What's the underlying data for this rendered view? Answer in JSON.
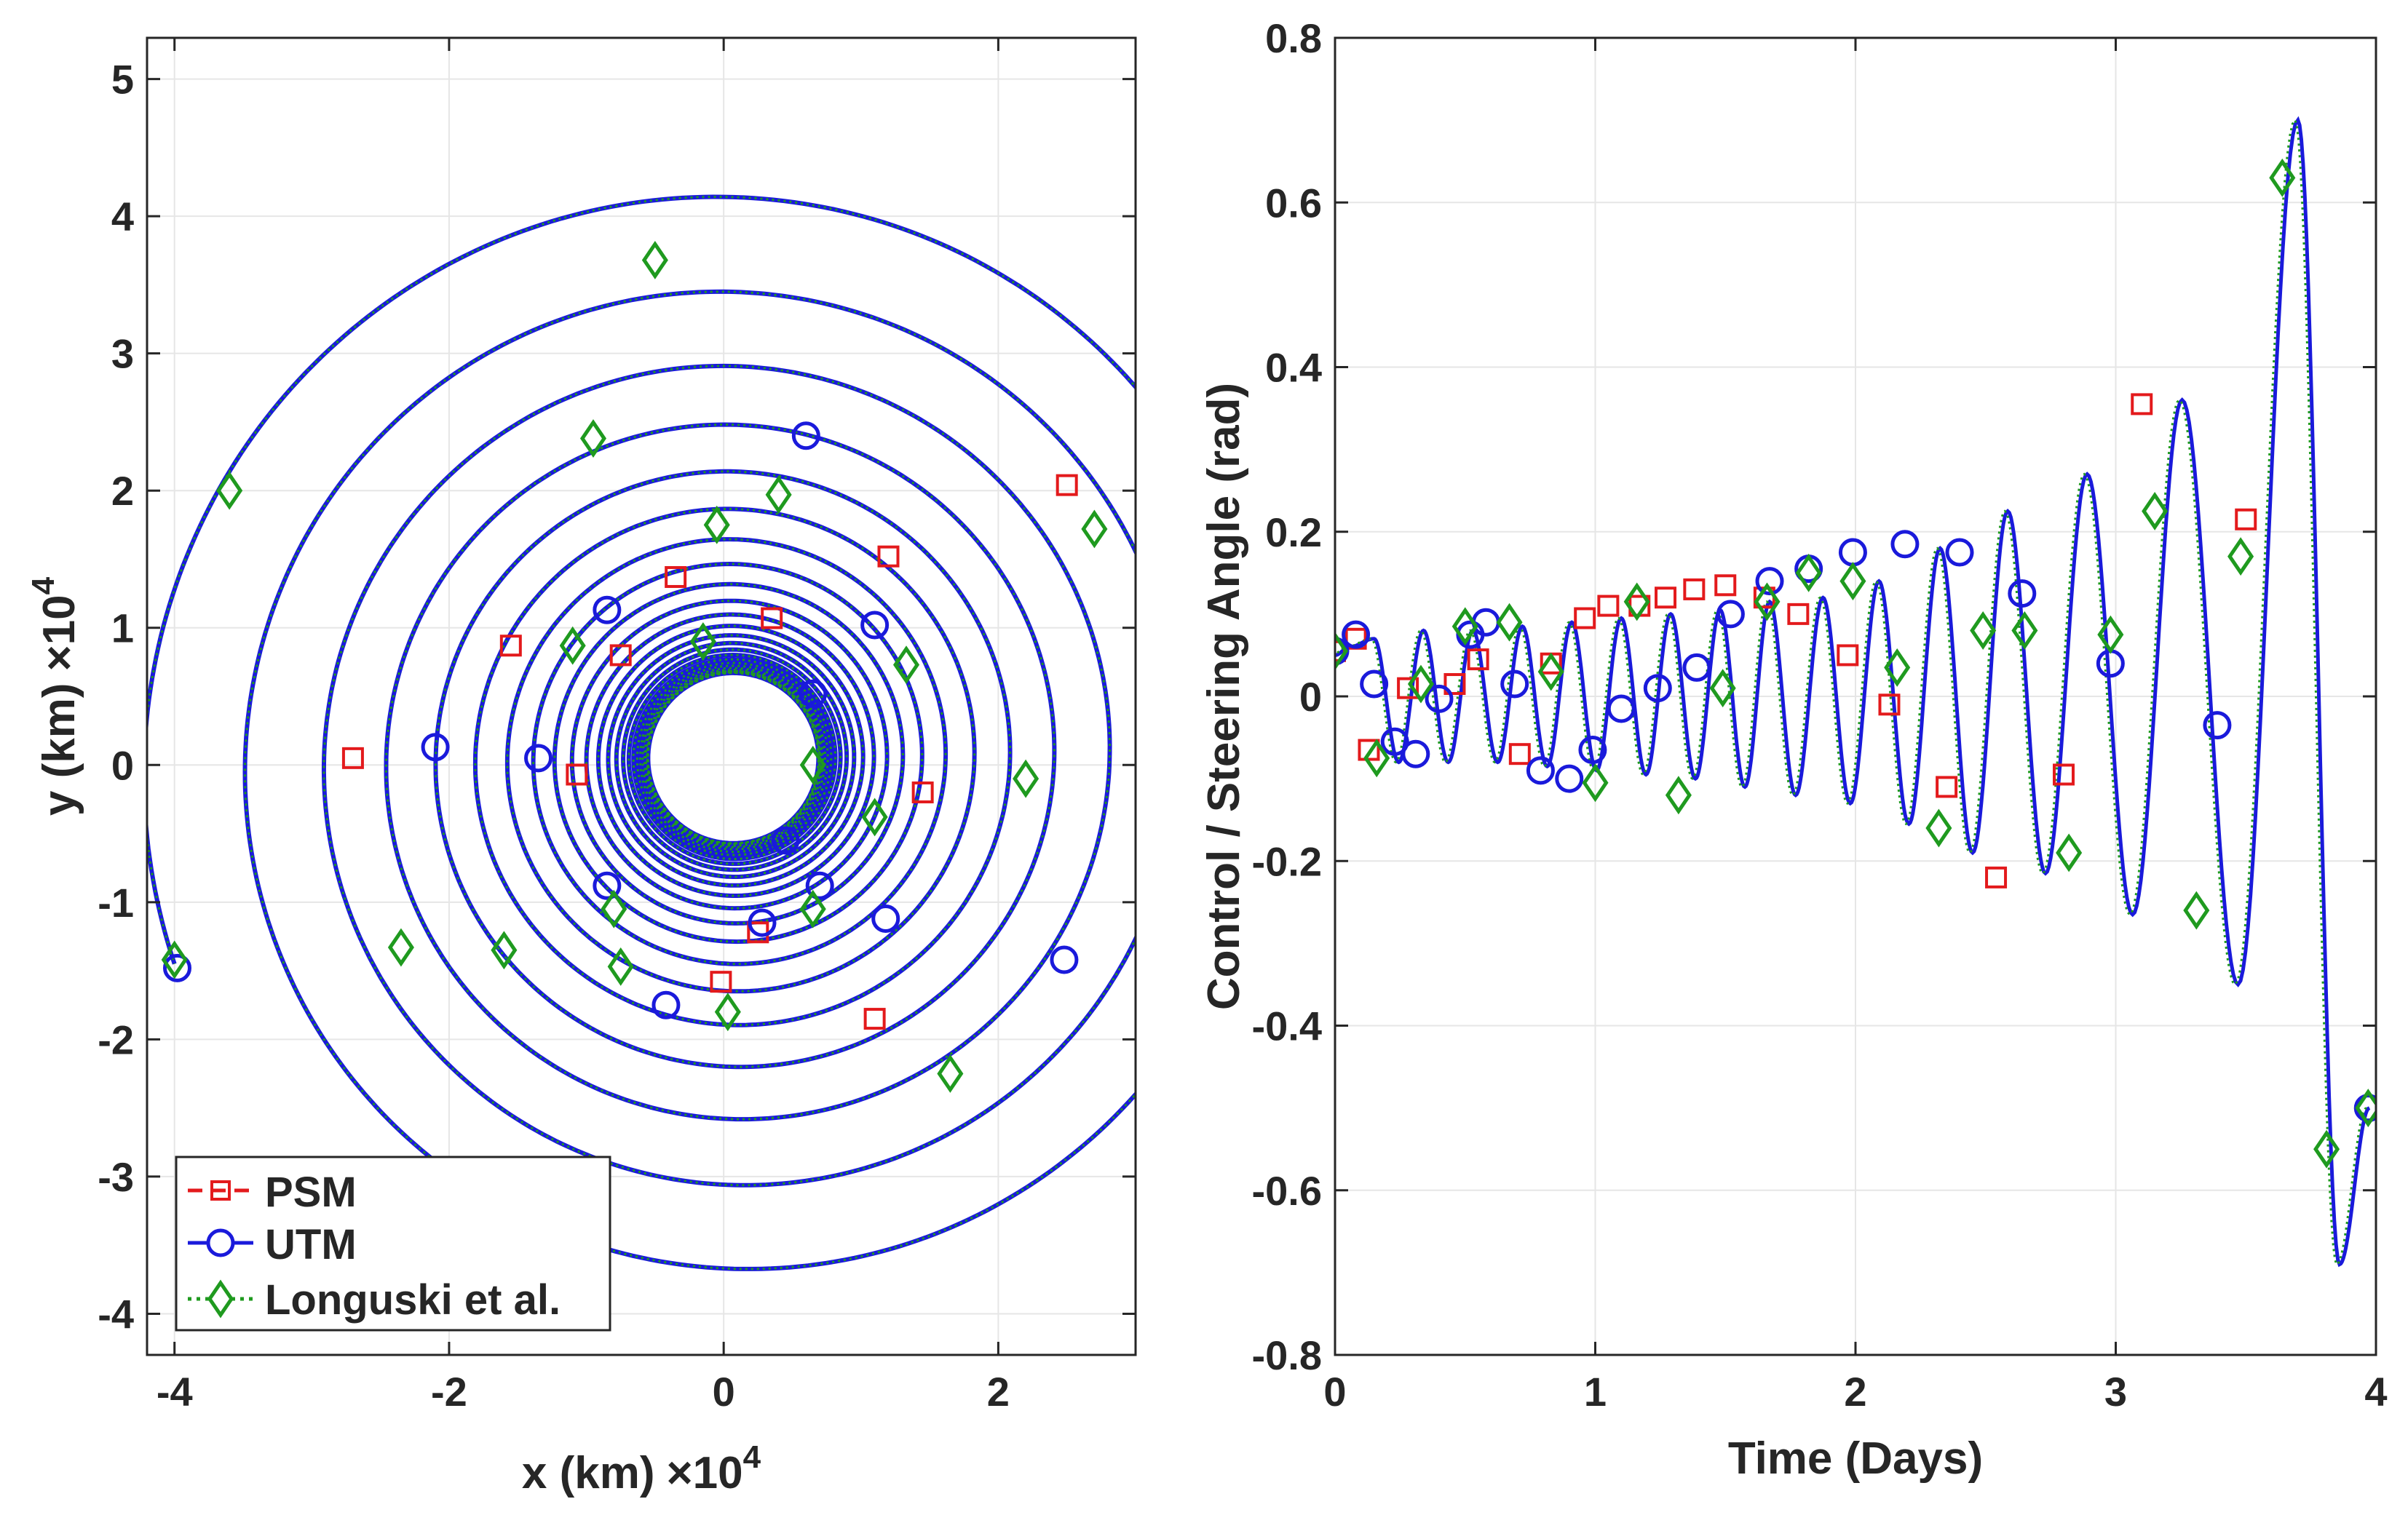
{
  "chart_data": [
    {
      "type": "line",
      "subtype": "spiral-trajectory",
      "xlabel": "x (km)",
      "ylabel": "y (km)",
      "x_exponent_label": "×10",
      "x_exponent": "4",
      "y_exponent_label": "×10",
      "y_exponent": "4",
      "xlim": [
        -4.2,
        3.0
      ],
      "ylim": [
        -4.3,
        5.3
      ],
      "xticks": [
        -4,
        -2,
        0,
        2
      ],
      "yticks": [
        -4,
        -3,
        -2,
        -1,
        0,
        1,
        2,
        3,
        4,
        5
      ],
      "xtick_labels": [
        "-4",
        "-2",
        "0",
        "2"
      ],
      "ytick_labels": [
        "-4",
        "-3",
        "-2",
        "-1",
        "0",
        "1",
        "2",
        "3",
        "4",
        "5"
      ],
      "grid": true,
      "legend_position": "bottom-left",
      "spiral": {
        "center": [
          0.07,
          0.05
        ],
        "start_radius": 0.62,
        "end_point": [
          -4.0,
          -1.45
        ],
        "turns": 26
      },
      "series": [
        {
          "name": "PSM",
          "color": "#e31a1c",
          "line_style": "dashed",
          "marker": "square",
          "points": [
            [
              -2.7,
              0.05
            ],
            [
              -1.55,
              0.87
            ],
            [
              -0.35,
              1.37
            ],
            [
              1.2,
              1.52
            ],
            [
              2.5,
              2.04
            ],
            [
              1.45,
              -0.2
            ],
            [
              1.1,
              -1.85
            ],
            [
              -0.02,
              -1.58
            ],
            [
              0.25,
              -1.22
            ],
            [
              -1.07,
              -0.07
            ],
            [
              -0.75,
              0.8
            ],
            [
              0.35,
              1.07
            ]
          ]
        },
        {
          "name": "UTM",
          "color": "#1a1adb",
          "line_style": "solid",
          "marker": "circle",
          "points": [
            [
              -3.98,
              -1.48
            ],
            [
              -2.1,
              0.13
            ],
            [
              -1.35,
              0.05
            ],
            [
              -0.85,
              1.13
            ],
            [
              0.6,
              2.4
            ],
            [
              1.1,
              1.02
            ],
            [
              1.18,
              -1.12
            ],
            [
              2.48,
              -1.42
            ],
            [
              -0.42,
              -1.75
            ],
            [
              0.28,
              -1.15
            ],
            [
              -0.85,
              -0.88
            ],
            [
              0.65,
              0.52
            ],
            [
              0.7,
              -0.88
            ],
            [
              0.45,
              -0.55
            ]
          ]
        },
        {
          "name": "Longuski et al.",
          "color": "#1f9a1f",
          "line_style": "dotted",
          "marker": "diamond",
          "points": [
            [
              -4.0,
              -1.42
            ],
            [
              -3.6,
              2.0
            ],
            [
              -0.5,
              3.68
            ],
            [
              2.7,
              1.72
            ],
            [
              2.2,
              -0.1
            ],
            [
              1.65,
              -2.25
            ],
            [
              0.03,
              -1.8
            ],
            [
              -1.6,
              -1.35
            ],
            [
              -2.35,
              -1.33
            ],
            [
              -1.1,
              0.87
            ],
            [
              -0.95,
              2.38
            ],
            [
              0.4,
              1.97
            ],
            [
              1.33,
              0.73
            ],
            [
              1.1,
              -0.38
            ],
            [
              0.65,
              -1.05
            ],
            [
              -0.75,
              -1.47
            ],
            [
              -0.8,
              -1.05
            ],
            [
              -0.05,
              1.75
            ],
            [
              0.65,
              0.0
            ],
            [
              -0.15,
              0.9
            ]
          ]
        }
      ]
    },
    {
      "type": "line",
      "xlabel": "Time (Days)",
      "ylabel": "Control / Steering Angle (rad)",
      "xlim": [
        0,
        4
      ],
      "ylim": [
        -0.8,
        0.8
      ],
      "xticks": [
        0,
        1,
        2,
        3,
        4
      ],
      "yticks": [
        -0.8,
        -0.6,
        -0.4,
        -0.2,
        0,
        0.2,
        0.4,
        0.6,
        0.8
      ],
      "xtick_labels": [
        "0",
        "1",
        "2",
        "3",
        "4"
      ],
      "ytick_labels": [
        "-0.8",
        "-0.6",
        "-0.4",
        "-0.2",
        "0",
        "0.2",
        "0.4",
        "0.6",
        "0.8"
      ],
      "grid": true,
      "control_curve": {
        "peaks_t": [
          0.055,
          0.15,
          0.245,
          0.34,
          0.435,
          0.53,
          0.625,
          0.72,
          0.815,
          0.91,
          1.005,
          1.1,
          1.195,
          1.29,
          1.385,
          1.48,
          1.575,
          1.67,
          1.77,
          1.875,
          1.98,
          2.09,
          2.205,
          2.325,
          2.45,
          2.585,
          2.73,
          2.89,
          3.065,
          3.255,
          3.47,
          3.7,
          3.86,
          3.975
        ],
        "peaks_v": [
          0.06,
          0.07,
          -0.08,
          0.08,
          -0.08,
          0.08,
          -0.08,
          0.085,
          -0.085,
          0.09,
          -0.09,
          0.095,
          -0.095,
          0.1,
          -0.1,
          0.105,
          -0.11,
          0.115,
          -0.12,
          0.12,
          -0.13,
          0.14,
          -0.155,
          0.18,
          -0.19,
          0.225,
          -0.215,
          0.27,
          -0.265,
          0.36,
          -0.35,
          0.7,
          -0.69,
          -0.5
        ]
      },
      "series": [
        {
          "name": "PSM",
          "color": "#e31a1c",
          "marker": "square",
          "points": [
            [
              0.0,
              0.055
            ],
            [
              0.08,
              0.07
            ],
            [
              0.13,
              -0.065
            ],
            [
              0.28,
              0.01
            ],
            [
              0.46,
              0.015
            ],
            [
              0.55,
              0.045
            ],
            [
              0.71,
              -0.07
            ],
            [
              0.83,
              0.04
            ],
            [
              0.96,
              0.095
            ],
            [
              1.05,
              0.11
            ],
            [
              1.17,
              0.11
            ],
            [
              1.27,
              0.12
            ],
            [
              1.38,
              0.13
            ],
            [
              1.5,
              0.135
            ],
            [
              1.65,
              0.12
            ],
            [
              1.78,
              0.1
            ],
            [
              1.97,
              0.05
            ],
            [
              2.13,
              -0.01
            ],
            [
              2.35,
              -0.11
            ],
            [
              2.54,
              -0.22
            ],
            [
              2.8,
              -0.095
            ],
            [
              3.1,
              0.355
            ],
            [
              3.5,
              0.215
            ]
          ]
        },
        {
          "name": "UTM",
          "color": "#1a1adb",
          "marker": "circle",
          "points": [
            [
              0.0,
              0.055
            ],
            [
              0.08,
              0.075
            ],
            [
              0.15,
              0.015
            ],
            [
              0.23,
              -0.055
            ],
            [
              0.31,
              -0.07
            ],
            [
              0.4,
              -0.003
            ],
            [
              0.52,
              0.075
            ],
            [
              0.58,
              0.09
            ],
            [
              0.69,
              0.015
            ],
            [
              0.79,
              -0.09
            ],
            [
              0.9,
              -0.1
            ],
            [
              0.99,
              -0.065
            ],
            [
              1.1,
              -0.015
            ],
            [
              1.24,
              0.01
            ],
            [
              1.39,
              0.035
            ],
            [
              1.52,
              0.1
            ],
            [
              1.67,
              0.14
            ],
            [
              1.82,
              0.155
            ],
            [
              1.99,
              0.175
            ],
            [
              2.19,
              0.185
            ],
            [
              2.4,
              0.175
            ],
            [
              2.64,
              0.125
            ],
            [
              2.98,
              0.04
            ],
            [
              3.39,
              -0.035
            ],
            [
              3.97,
              -0.5
            ]
          ]
        },
        {
          "name": "Longuski et al.",
          "color": "#1f9a1f",
          "marker": "diamond",
          "points": [
            [
              0.0,
              0.055
            ],
            [
              0.16,
              -0.075
            ],
            [
              0.33,
              0.015
            ],
            [
              0.5,
              0.085
            ],
            [
              0.67,
              0.09
            ],
            [
              0.83,
              0.03
            ],
            [
              1.0,
              -0.105
            ],
            [
              1.16,
              0.115
            ],
            [
              1.32,
              -0.12
            ],
            [
              1.49,
              0.01
            ],
            [
              1.66,
              0.115
            ],
            [
              1.82,
              0.15
            ],
            [
              1.99,
              0.14
            ],
            [
              2.16,
              0.035
            ],
            [
              2.32,
              -0.16
            ],
            [
              2.49,
              0.08
            ],
            [
              2.65,
              0.08
            ],
            [
              2.82,
              -0.19
            ],
            [
              2.98,
              0.075
            ],
            [
              3.15,
              0.225
            ],
            [
              3.31,
              -0.26
            ],
            [
              3.48,
              0.17
            ],
            [
              3.64,
              0.63
            ],
            [
              3.81,
              -0.55
            ],
            [
              3.97,
              -0.5
            ]
          ]
        }
      ]
    }
  ]
}
